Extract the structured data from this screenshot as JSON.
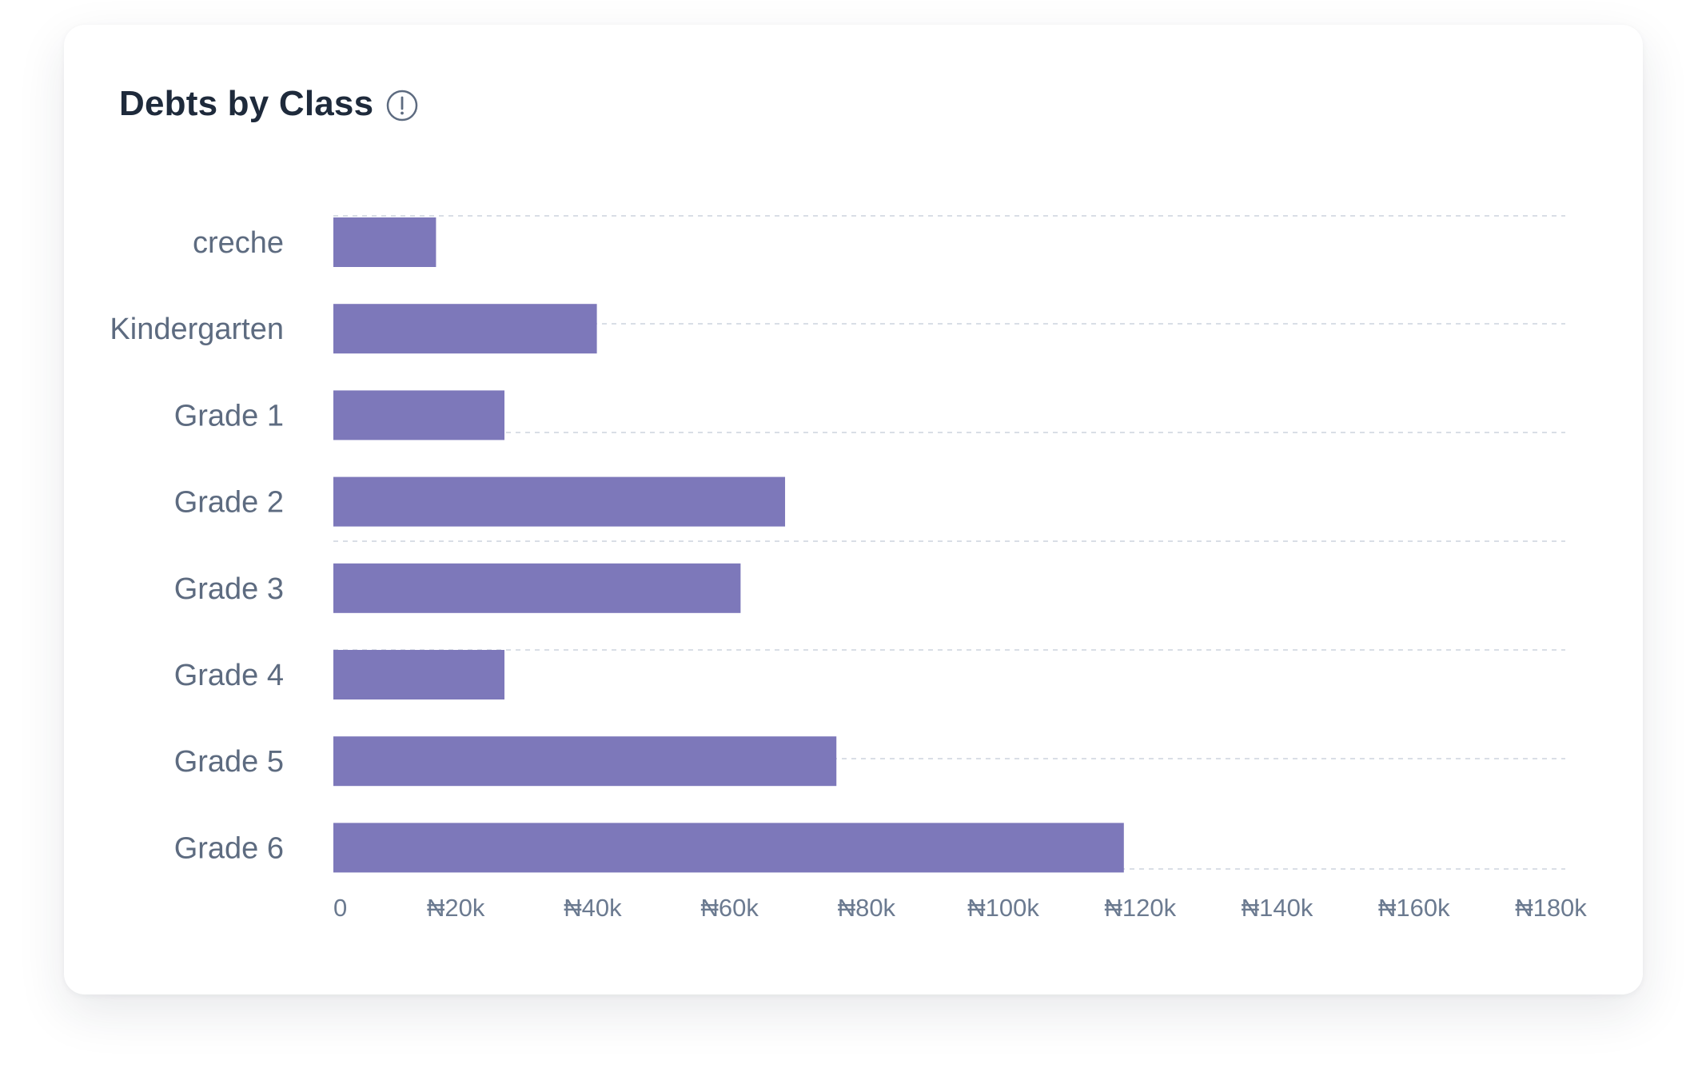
{
  "card": {
    "title": "Debts by Class",
    "info_icon": "info-circle-icon"
  },
  "chart_data": {
    "type": "bar",
    "orientation": "horizontal",
    "title": "Debts by Class",
    "xlabel": "",
    "ylabel": "",
    "categories": [
      "creche",
      "Kindergarten",
      "Grade 1",
      "Grade 2",
      "Grade 3",
      "Grade 4",
      "Grade 5",
      "Grade 6"
    ],
    "values": [
      15000,
      38500,
      25000,
      66000,
      59500,
      25000,
      73500,
      115500
    ],
    "xlim": [
      0,
      180000
    ],
    "xticks": [
      0,
      20000,
      40000,
      60000,
      80000,
      100000,
      120000,
      140000,
      160000,
      180000
    ],
    "xtick_labels": [
      "0",
      "₦20k",
      "₦40k",
      "₦60k",
      "₦80k",
      "₦100k",
      "₦120k",
      "₦140k",
      "₦160k",
      "₦180k"
    ],
    "grid": true,
    "grid_style": "dashed",
    "legend": false,
    "bar_color": "#7d78ba",
    "grid_color": "#d9dee6",
    "label_color": "#5d6b80",
    "title_color": "#1e2a3b"
  }
}
